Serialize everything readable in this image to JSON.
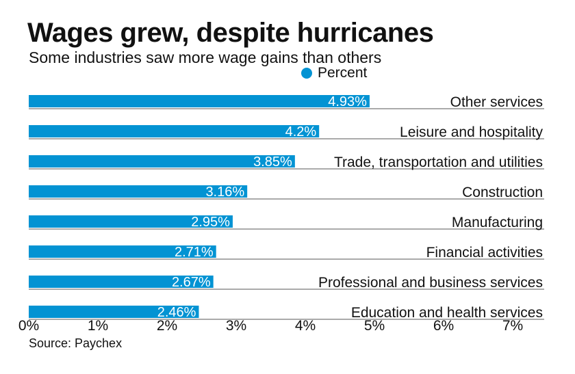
{
  "title": "Wages grew, despite hurricanes",
  "subtitle": "Some industries saw more wage gains than others",
  "source": "Source: Paychex",
  "colors": {
    "bar": "#0393d3",
    "bar_label": "#ffffff",
    "text": "#111111",
    "rule": "#555555"
  },
  "chart_data": {
    "type": "bar",
    "orientation": "horizontal",
    "title": "Wages grew, despite hurricanes",
    "subtitle": "Some industries saw more wage gains than others",
    "legend": [
      "Percent"
    ],
    "legend_position": "top-center",
    "xlabel": "",
    "ylabel": "",
    "xlim": [
      0,
      7
    ],
    "grid": false,
    "x_ticks": [
      0,
      1,
      2,
      3,
      4,
      5,
      6,
      7
    ],
    "x_tick_labels": [
      "0%",
      "1%",
      "2%",
      "3%",
      "4%",
      "5%",
      "6%",
      "7%"
    ],
    "categories": [
      "Other services",
      "Leisure and hospitality",
      "Trade, transportation and utilities",
      "Construction",
      "Manufacturing",
      "Financial activities",
      "Professional and business services",
      "Education and health services"
    ],
    "values": [
      4.93,
      4.2,
      3.85,
      3.16,
      2.95,
      2.71,
      2.67,
      2.46
    ],
    "value_labels": [
      "4.93%",
      "4.2%",
      "3.85%",
      "3.16%",
      "2.95%",
      "2.71%",
      "2.67%",
      "2.46%"
    ],
    "series": [
      {
        "name": "Percent",
        "values": [
          4.93,
          4.2,
          3.85,
          3.16,
          2.95,
          2.71,
          2.67,
          2.46
        ]
      }
    ]
  }
}
